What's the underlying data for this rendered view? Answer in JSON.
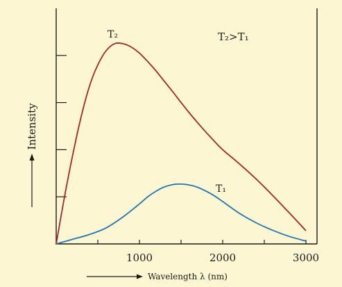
{
  "chart_data": {
    "type": "line",
    "xlabel": "Wavelength λ (nm)",
    "ylabel": "Intensity",
    "x_ticks": [
      500,
      1000,
      1500,
      2000,
      2500,
      3000
    ],
    "x_tick_labels": [
      "1000",
      "2000",
      "3000"
    ],
    "xlim": [
      0,
      3000
    ],
    "ylim": [
      0,
      5
    ],
    "y_ticks": [
      1,
      2,
      3,
      4
    ],
    "annotation": "T₂>T₁",
    "series": [
      {
        "name": "T₂",
        "color": "#a3262a",
        "points": [
          [
            0,
            0
          ],
          [
            100,
            1.0
          ],
          [
            200,
            1.9
          ],
          [
            300,
            2.7
          ],
          [
            400,
            3.35
          ],
          [
            500,
            3.8
          ],
          [
            600,
            4.1
          ],
          [
            700,
            4.25
          ],
          [
            800,
            4.25
          ],
          [
            900,
            4.18
          ],
          [
            1000,
            4.05
          ],
          [
            1100,
            3.87
          ],
          [
            1200,
            3.67
          ],
          [
            1300,
            3.45
          ],
          [
            1400,
            3.23
          ],
          [
            1500,
            3.0
          ],
          [
            1600,
            2.78
          ],
          [
            1700,
            2.57
          ],
          [
            1800,
            2.37
          ],
          [
            1900,
            2.18
          ],
          [
            2000,
            2.0
          ],
          [
            2200,
            1.7
          ],
          [
            2400,
            1.38
          ],
          [
            2600,
            1.03
          ],
          [
            2800,
            0.66
          ],
          [
            3000,
            0.28
          ]
        ]
      },
      {
        "name": "T₁",
        "color": "#2274b0",
        "points": [
          [
            0,
            0
          ],
          [
            200,
            0.1
          ],
          [
            400,
            0.2
          ],
          [
            600,
            0.34
          ],
          [
            800,
            0.57
          ],
          [
            1000,
            0.85
          ],
          [
            1100,
            1.0
          ],
          [
            1200,
            1.12
          ],
          [
            1300,
            1.21
          ],
          [
            1400,
            1.26
          ],
          [
            1500,
            1.27
          ],
          [
            1600,
            1.25
          ],
          [
            1700,
            1.2
          ],
          [
            1800,
            1.12
          ],
          [
            1900,
            1.02
          ],
          [
            2000,
            0.9
          ],
          [
            2200,
            0.65
          ],
          [
            2400,
            0.45
          ],
          [
            2600,
            0.29
          ],
          [
            2800,
            0.16
          ],
          [
            3000,
            0.06
          ]
        ]
      }
    ]
  }
}
